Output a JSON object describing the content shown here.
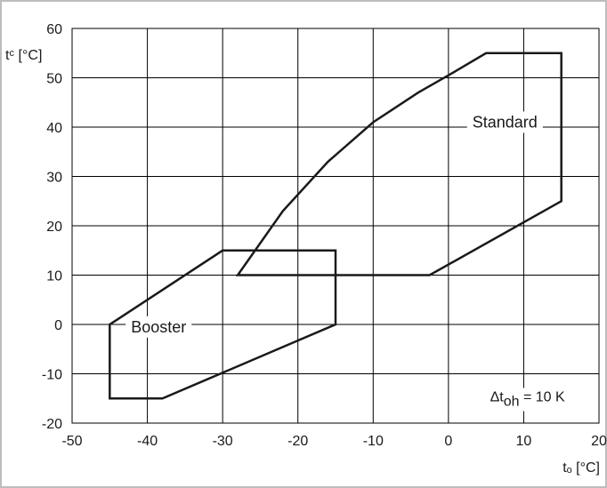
{
  "chart_data": {
    "type": "line",
    "title": "",
    "xlabel": "tₒ [°C]",
    "ylabel": "tᶜ [°C]",
    "xlim": [
      -50,
      20
    ],
    "ylim": [
      -20,
      60
    ],
    "xticks": [
      -50,
      -40,
      -30,
      -20,
      -10,
      0,
      10,
      20
    ],
    "yticks": [
      -20,
      -10,
      0,
      10,
      20,
      30,
      40,
      50,
      60
    ],
    "grid": true,
    "colors": {
      "grid": "#000000",
      "series": "#1a1a1a",
      "frame": "#bdbdbd"
    },
    "series": [
      {
        "name": "Standard",
        "closed": true,
        "points": [
          {
            "x": -28,
            "y": 10
          },
          {
            "x": -22,
            "y": 23
          },
          {
            "x": -16,
            "y": 33
          },
          {
            "x": -10,
            "y": 41
          },
          {
            "x": -4,
            "y": 47
          },
          {
            "x": 0,
            "y": 50.5
          },
          {
            "x": 5,
            "y": 55
          },
          {
            "x": 15,
            "y": 55
          },
          {
            "x": 15,
            "y": 25
          },
          {
            "x": -2.5,
            "y": 10
          }
        ]
      },
      {
        "name": "Booster",
        "closed": true,
        "points": [
          {
            "x": -45,
            "y": 0
          },
          {
            "x": -30,
            "y": 15
          },
          {
            "x": -15,
            "y": 15
          },
          {
            "x": -15,
            "y": 0
          },
          {
            "x": -38,
            "y": -15
          },
          {
            "x": -45,
            "y": -15
          }
        ]
      }
    ],
    "annotations": [
      {
        "text": "Standard",
        "x": 7.5,
        "y": 41
      },
      {
        "text": "Booster",
        "x": -38.5,
        "y": -0.5
      },
      {
        "text": "Δt",
        "sub": "oh",
        "suffix": " = 10 K",
        "x": 10.5,
        "y": -14.5
      }
    ]
  }
}
